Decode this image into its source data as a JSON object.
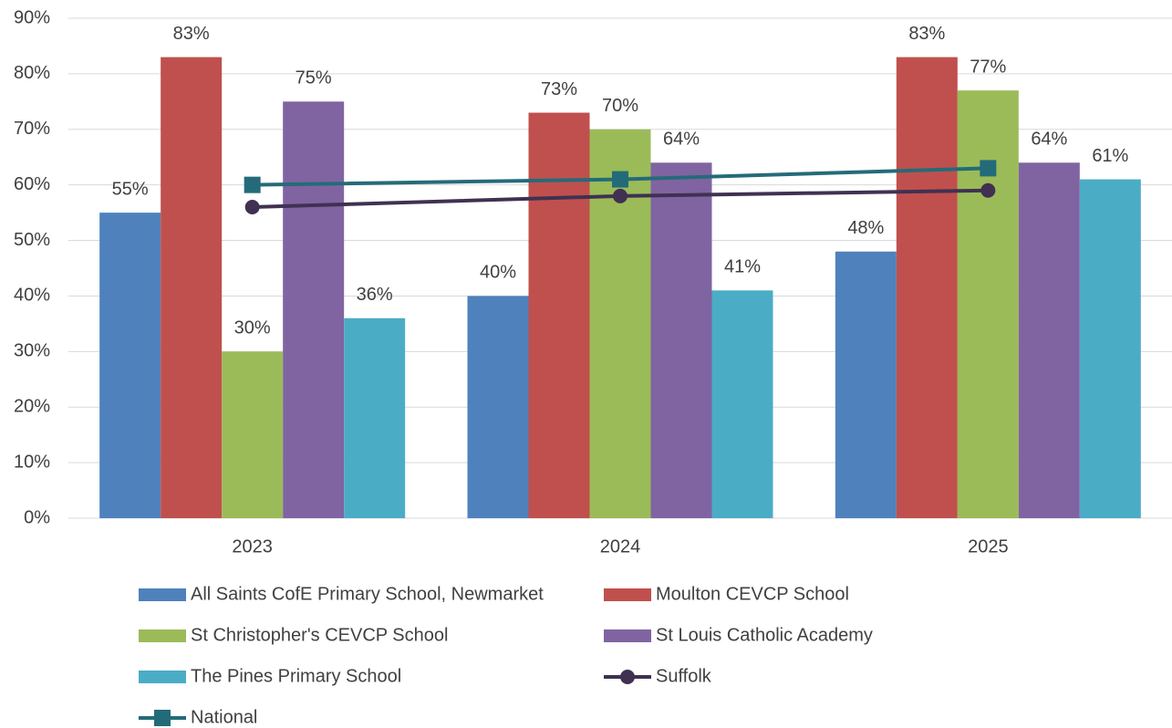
{
  "chart_data": {
    "type": "bar",
    "categories": [
      "2023",
      "2024",
      "2025"
    ],
    "ylim": [
      0,
      90
    ],
    "yticks": [
      {
        "value": 0,
        "label": "0%"
      },
      {
        "value": 10,
        "label": "10%"
      },
      {
        "value": 20,
        "label": "20%"
      },
      {
        "value": 30,
        "label": "30%"
      },
      {
        "value": 40,
        "label": "40%"
      },
      {
        "value": 50,
        "label": "50%"
      },
      {
        "value": 60,
        "label": "60%"
      },
      {
        "value": 70,
        "label": "70%"
      },
      {
        "value": 80,
        "label": "80%"
      },
      {
        "value": 90,
        "label": "90%"
      }
    ],
    "grid": true,
    "legend": "bottom",
    "series": [
      {
        "name": "All Saints CofE Primary School, Newmarket",
        "color": "#4f81bd",
        "values": [
          55,
          40,
          48
        ],
        "value_labels": [
          "55%",
          "40%",
          "48%"
        ]
      },
      {
        "name": "Moulton CEVCP School",
        "color": "#c0504d",
        "values": [
          83,
          73,
          83
        ],
        "value_labels": [
          "83%",
          "73%",
          "83%"
        ]
      },
      {
        "name": "St Christopher's CEVCP School",
        "color": "#9bbb59",
        "values": [
          30,
          70,
          77
        ],
        "value_labels": [
          "30%",
          "70%",
          "77%"
        ]
      },
      {
        "name": "St Louis Catholic Academy",
        "color": "#8064a2",
        "values": [
          75,
          64,
          64
        ],
        "value_labels": [
          "75%",
          "64%",
          "64%"
        ]
      },
      {
        "name": "The Pines Primary School",
        "color": "#4bacc6",
        "values": [
          36,
          41,
          61
        ],
        "value_labels": [
          "36%",
          "41%",
          "61%"
        ]
      },
      {
        "name": "Suffolk",
        "color": "#403152",
        "type": "line",
        "marker": "circle",
        "values": [
          56,
          58,
          59
        ]
      },
      {
        "name": "National",
        "color": "#246b79",
        "type": "line",
        "marker": "square",
        "values": [
          60,
          61,
          63
        ]
      }
    ]
  }
}
